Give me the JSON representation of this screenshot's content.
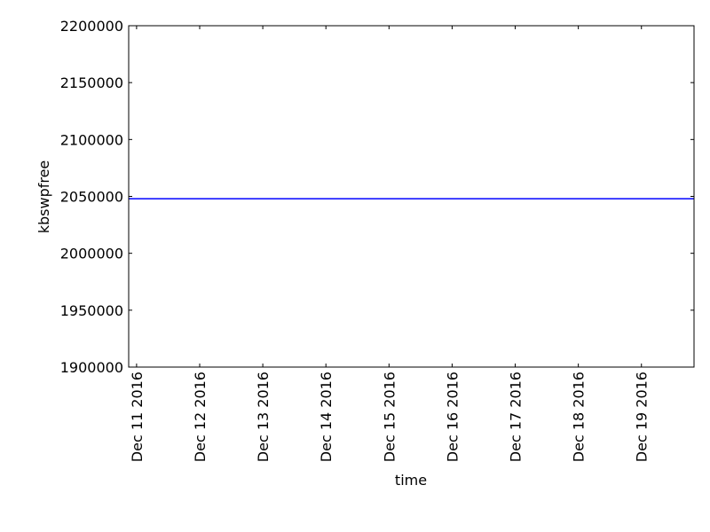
{
  "chart_data": {
    "type": "line",
    "title": "",
    "xlabel": "time",
    "ylabel": "kbswpfree",
    "xlim": [
      "2016-12-10 21:00",
      "2016-12-19 20:00"
    ],
    "ylim": [
      1900000,
      2200000
    ],
    "x_ticks": [
      {
        "date": "2016-12-11",
        "label": "Dec 11 2016"
      },
      {
        "date": "2016-12-12",
        "label": "Dec 12 2016"
      },
      {
        "date": "2016-12-13",
        "label": "Dec 13 2016"
      },
      {
        "date": "2016-12-14",
        "label": "Dec 14 2016"
      },
      {
        "date": "2016-12-15",
        "label": "Dec 15 2016"
      },
      {
        "date": "2016-12-16",
        "label": "Dec 16 2016"
      },
      {
        "date": "2016-12-17",
        "label": "Dec 17 2016"
      },
      {
        "date": "2016-12-18",
        "label": "Dec 18 2016"
      },
      {
        "date": "2016-12-19",
        "label": "Dec 19 2016"
      }
    ],
    "y_ticks": [
      1900000,
      1950000,
      2000000,
      2050000,
      2100000,
      2150000,
      2200000
    ],
    "grid": false,
    "series": [
      {
        "color": "#0000ff",
        "x": [
          "2016-12-10 21:00",
          "2016-12-19 20:00"
        ],
        "y": [
          2048000,
          2048000
        ]
      }
    ]
  }
}
